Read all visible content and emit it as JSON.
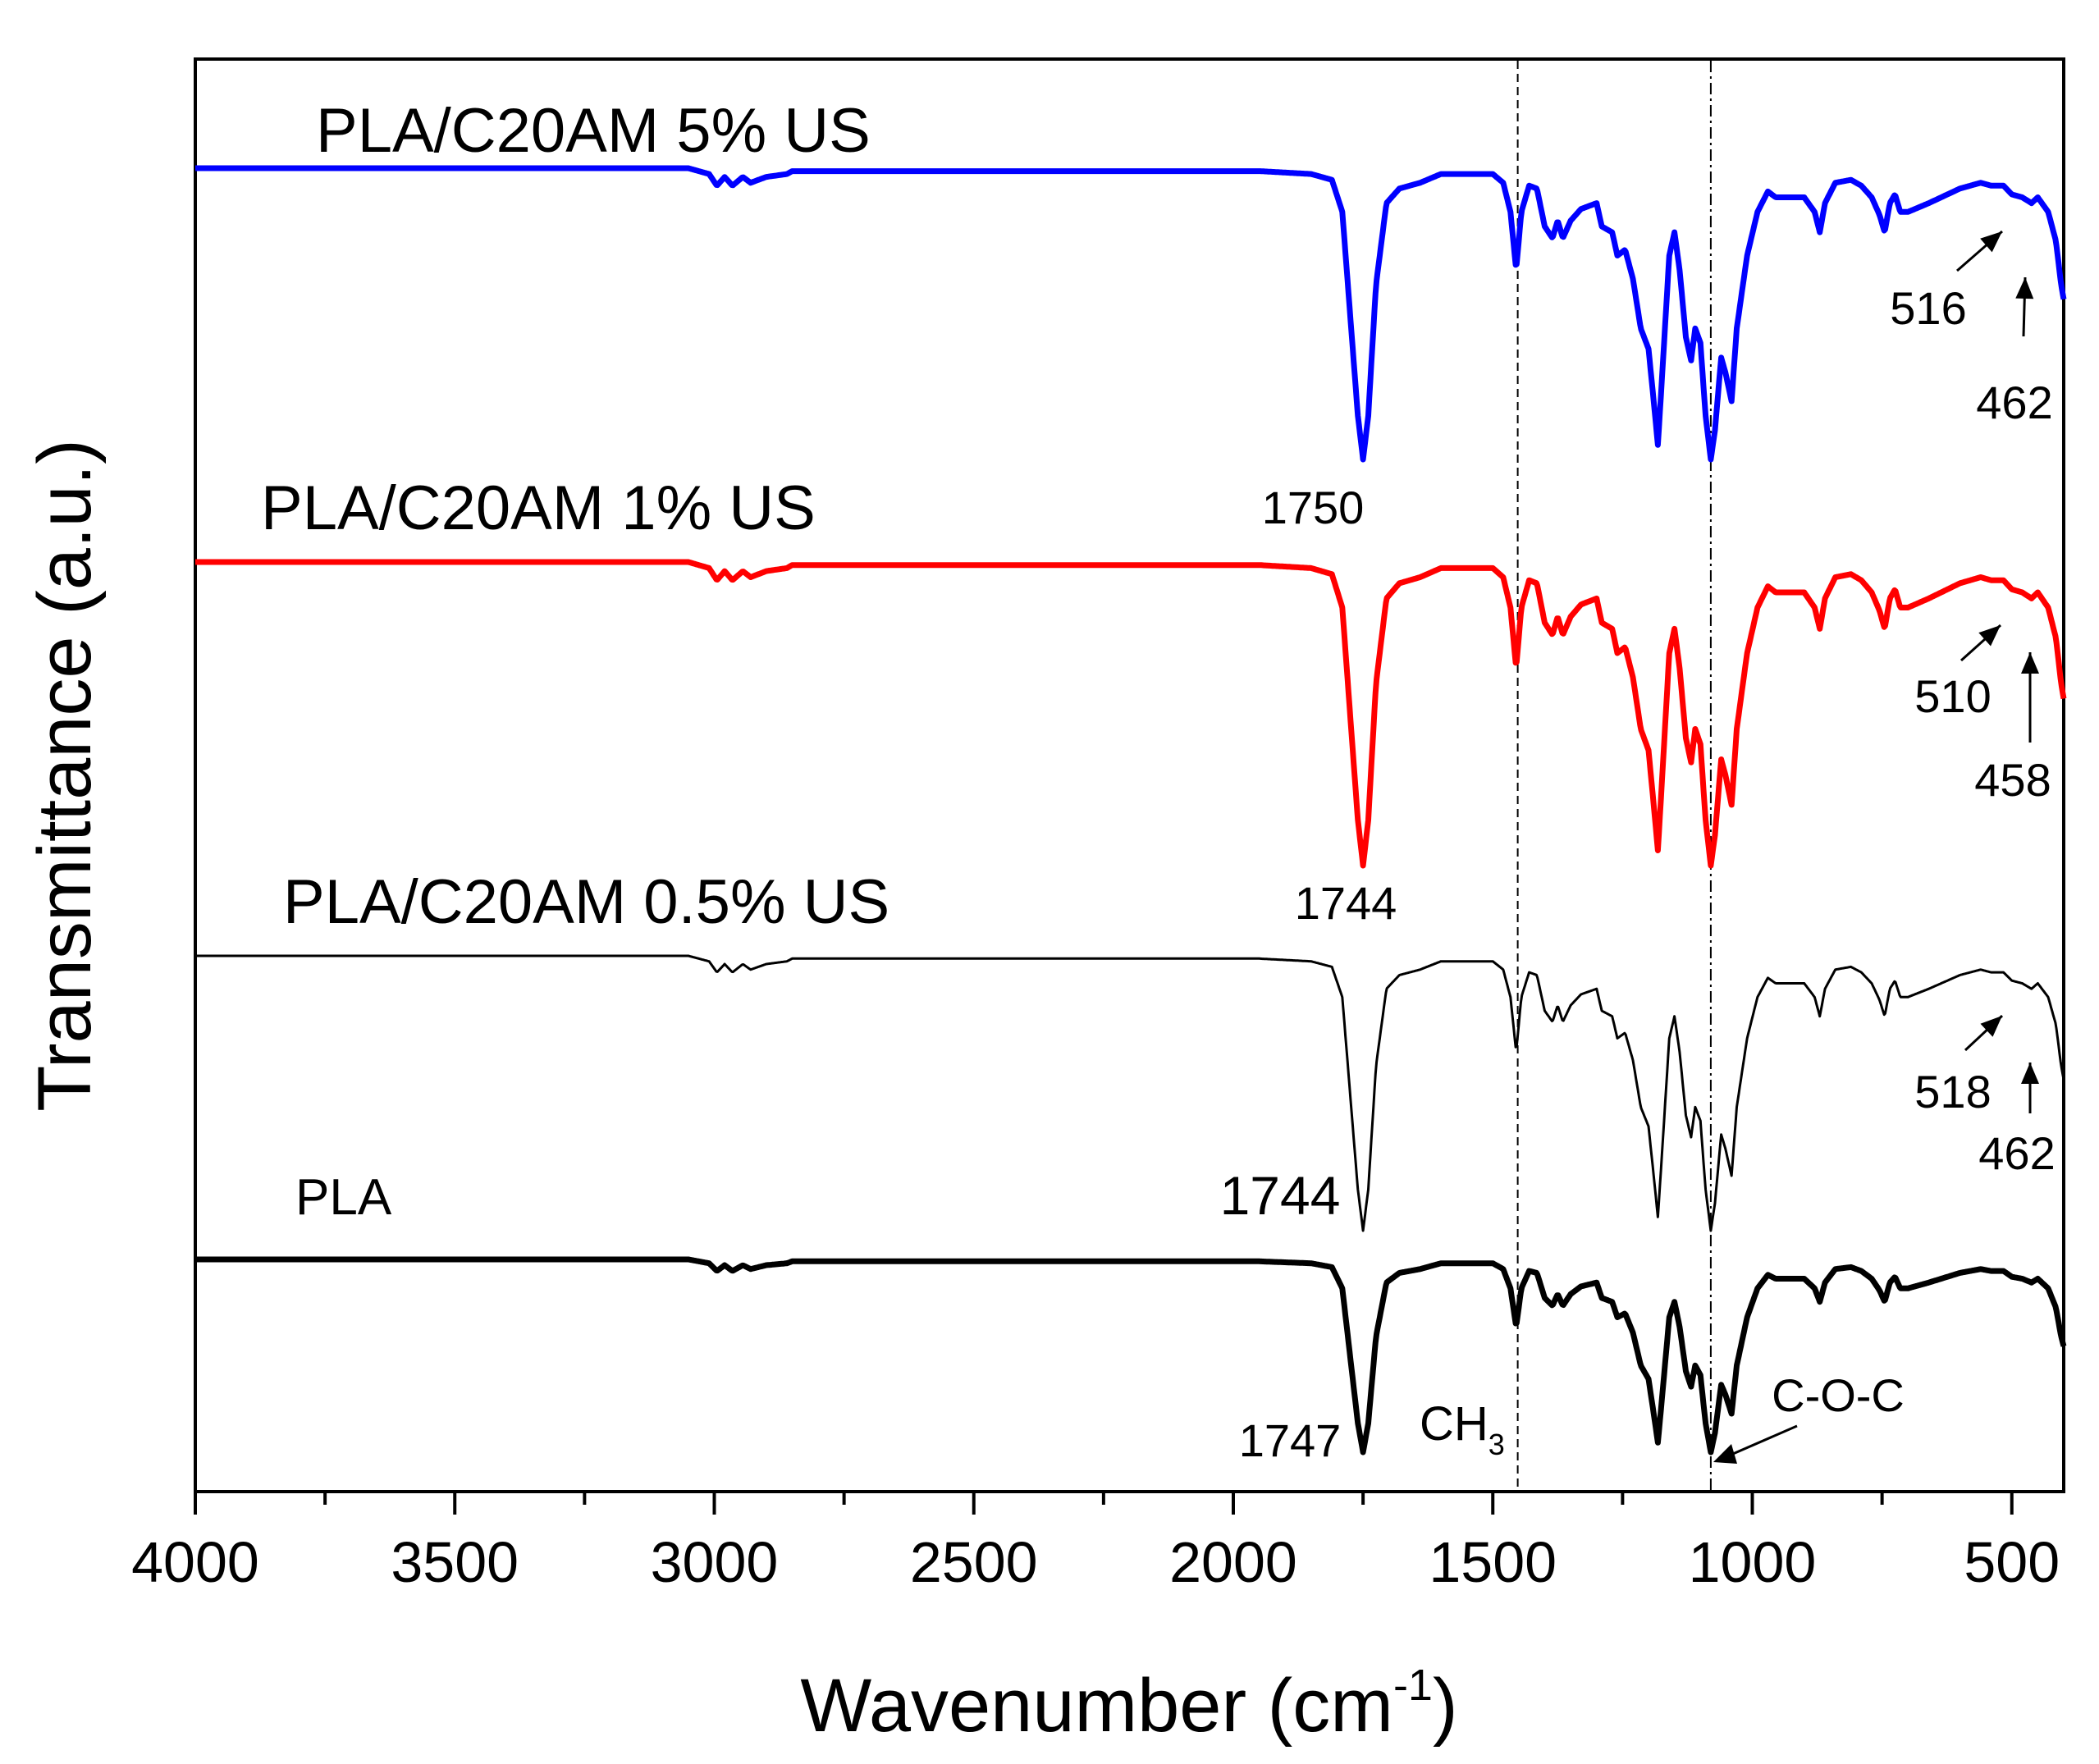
{
  "chart_data": {
    "type": "line",
    "title": "",
    "xlabel": "Wavenumber (cm",
    "xlabel_sup": "-1",
    "xlabel_close": ")",
    "ylabel": "Transmittance (a.u.)",
    "xlim": [
      4000,
      400
    ],
    "x_ticks": [
      4000,
      3500,
      3000,
      2500,
      2000,
      1500,
      1000,
      500
    ],
    "x_tick_labels": [
      "4000",
      "3500",
      "3000",
      "2500",
      "2000",
      "1500",
      "1000",
      "500"
    ],
    "y_ticks": "none",
    "reference_lines": [
      {
        "x": 1452,
        "style": "dashed",
        "label": "CH",
        "label_sub": "3"
      },
      {
        "x": 1080,
        "style": "dash-dot",
        "label": "C-O-C"
      }
    ],
    "series": [
      {
        "name": "PLA/C20AM 5% US",
        "color": "#0000ff",
        "offset": 3,
        "peak_labels": [
          {
            "wavenumber": 1750,
            "text": "1750"
          },
          {
            "wavenumber": 516,
            "text": "516"
          },
          {
            "wavenumber": 462,
            "text": "462"
          }
        ]
      },
      {
        "name": "PLA/C20AM 1% US",
        "color": "#ff0000",
        "offset": 2,
        "peak_labels": [
          {
            "wavenumber": 1744,
            "text": "1744"
          },
          {
            "wavenumber": 510,
            "text": "510"
          },
          {
            "wavenumber": 458,
            "text": "458"
          }
        ]
      },
      {
        "name": "PLA/C20AM 0.5% US",
        "color": "#000000",
        "offset": 1,
        "peak_labels": [
          {
            "wavenumber": 1744,
            "text": "1744"
          },
          {
            "wavenumber": 518,
            "text": "518"
          },
          {
            "wavenumber": 462,
            "text": "462"
          }
        ]
      },
      {
        "name": "PLA",
        "color": "#000000",
        "offset": 0,
        "peak_labels": [
          {
            "wavenumber": 1747,
            "text": "1747"
          }
        ]
      }
    ],
    "spectrum_shape": {
      "x": [
        4000,
        3050,
        3010,
        2995,
        2980,
        2965,
        2945,
        2930,
        2900,
        2860,
        2850,
        2700,
        1950,
        1850,
        1810,
        1790,
        1775,
        1760,
        1750,
        1740,
        1725,
        1705,
        1680,
        1660,
        1640,
        1600,
        1500,
        1480,
        1466,
        1455,
        1445,
        1430,
        1415,
        1400,
        1385,
        1375,
        1365,
        1350,
        1330,
        1300,
        1290,
        1270,
        1260,
        1245,
        1230,
        1215,
        1200,
        1190,
        1182,
        1175,
        1160,
        1150,
        1140,
        1128,
        1118,
        1110,
        1100,
        1090,
        1080,
        1072,
        1060,
        1052,
        1040,
        1030,
        1010,
        990,
        970,
        955,
        940,
        920,
        900,
        880,
        870,
        860,
        840,
        810,
        790,
        770,
        755,
        745,
        735,
        725,
        715,
        700,
        660,
        600,
        560,
        540,
        516,
        500,
        480,
        462,
        450,
        430,
        415,
        405,
        400
      ],
      "depth": [
        0,
        0,
        0.02,
        0.06,
        0.03,
        0.06,
        0.03,
        0.05,
        0.03,
        0.02,
        0.01,
        0.01,
        0.01,
        0.02,
        0.04,
        0.15,
        0.5,
        0.85,
        1.0,
        0.85,
        0.4,
        0.12,
        0.07,
        0.06,
        0.05,
        0.02,
        0.02,
        0.05,
        0.15,
        0.35,
        0.15,
        0.06,
        0.07,
        0.2,
        0.24,
        0.18,
        0.24,
        0.18,
        0.14,
        0.12,
        0.2,
        0.22,
        0.3,
        0.28,
        0.38,
        0.55,
        0.62,
        0.8,
        0.95,
        0.75,
        0.3,
        0.22,
        0.35,
        0.58,
        0.66,
        0.55,
        0.6,
        0.85,
        1.0,
        0.9,
        0.65,
        0.7,
        0.8,
        0.55,
        0.3,
        0.15,
        0.08,
        0.1,
        0.1,
        0.1,
        0.1,
        0.15,
        0.22,
        0.12,
        0.05,
        0.04,
        0.06,
        0.1,
        0.16,
        0.22,
        0.12,
        0.09,
        0.15,
        0.15,
        0.12,
        0.07,
        0.05,
        0.06,
        0.06,
        0.09,
        0.1,
        0.12,
        0.1,
        0.15,
        0.25,
        0.4,
        0.45
      ]
    }
  }
}
